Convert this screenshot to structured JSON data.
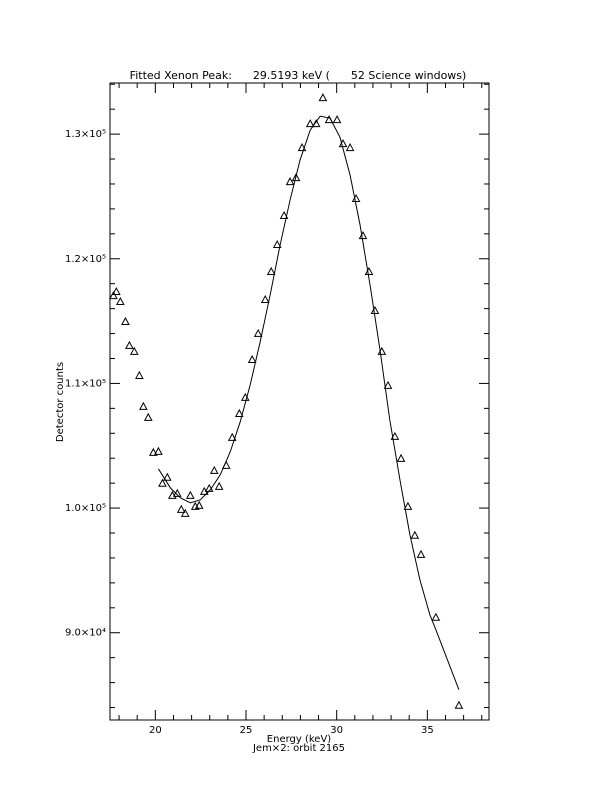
{
  "chart_data": {
    "type": "scatter",
    "title": "Fitted Xenon Peak:      29.5193 keV (      52 Science windows)",
    "x_label": "Energy (keV)",
    "subtitle": "Jem×2: orbit 2165",
    "y_label": "Detector counts",
    "xlim": [
      17.5,
      38.4
    ],
    "ylim": [
      83000,
      134100
    ],
    "xticks": [
      20,
      25,
      30,
      35
    ],
    "xminorticks": [
      18,
      19,
      21,
      22,
      23,
      24,
      26,
      27,
      28,
      29,
      31,
      32,
      33,
      34,
      36,
      37,
      38
    ],
    "yticks": [
      {
        "value": 90000,
        "label": "9.0×10⁴"
      },
      {
        "value": 100000,
        "label": "1.0×10⁵"
      },
      {
        "value": 110000,
        "label": "1.1×10⁵"
      },
      {
        "value": 120000,
        "label": "1.2×10⁵"
      },
      {
        "value": 130000,
        "label": "1.3×10⁵"
      }
    ],
    "yminorticks": [
      84000,
      86000,
      88000,
      92000,
      94000,
      96000,
      98000,
      102000,
      104000,
      106000,
      108000,
      112000,
      114000,
      116000,
      118000,
      122000,
      124000,
      126000,
      128000,
      132000,
      134000
    ],
    "series": [
      {
        "type": "scatter",
        "color": "#000000",
        "x": [
          17.69,
          17.85,
          18.07,
          18.35,
          18.57,
          18.84,
          19.12,
          19.34,
          19.61,
          19.89,
          20.17,
          20.39,
          20.66,
          20.94,
          21.21,
          21.43,
          21.65,
          21.93,
          22.2,
          22.42,
          22.7,
          22.97,
          23.25,
          23.52,
          23.91,
          24.24,
          24.63,
          24.96,
          25.34,
          25.67,
          26.06,
          26.39,
          26.72,
          27.1,
          27.43,
          27.76,
          28.09,
          28.54,
          28.87,
          29.24,
          29.58,
          30.02,
          30.35,
          30.74,
          31.07,
          31.45,
          31.78,
          32.11,
          32.49,
          32.83,
          33.21,
          33.55,
          33.93,
          34.31,
          34.65,
          35.47,
          36.74
        ],
        "values": [
          117000,
          117330,
          116530,
          114930,
          113010,
          112530,
          110600,
          108120,
          107240,
          104430,
          104510,
          101950,
          102430,
          100980,
          101140,
          99860,
          99540,
          100980,
          100100,
          100180,
          101300,
          101540,
          102980,
          101700,
          103390,
          105630,
          107550,
          108840,
          111880,
          113970,
          116690,
          118940,
          121100,
          123430,
          126150,
          126470,
          128880,
          130800,
          130800,
          132890,
          131120,
          131120,
          129200,
          128880,
          124790,
          121820,
          118940,
          115810,
          112530,
          109800,
          105710,
          103950,
          100100,
          97780,
          96250,
          91200,
          84140
        ]
      },
      {
        "type": "line",
        "color": "#000000",
        "x": [
          20.17,
          20.83,
          21.38,
          21.93,
          22.48,
          23.03,
          23.58,
          24.13,
          24.68,
          25.23,
          25.78,
          26.33,
          26.88,
          27.43,
          27.98,
          28.54,
          29.09,
          29.63,
          30.18,
          30.74,
          31.29,
          31.84,
          32.39,
          32.93,
          33.49,
          34.04,
          34.59,
          35.14,
          35.47,
          36.74
        ],
        "values": [
          103150,
          101620,
          100820,
          100420,
          100660,
          101460,
          102670,
          104510,
          106920,
          109880,
          113330,
          117090,
          121100,
          124710,
          127920,
          130320,
          131440,
          131280,
          129760,
          126710,
          122710,
          117900,
          112690,
          107070,
          102260,
          97850,
          94250,
          91440,
          90240,
          85430
        ]
      }
    ]
  }
}
